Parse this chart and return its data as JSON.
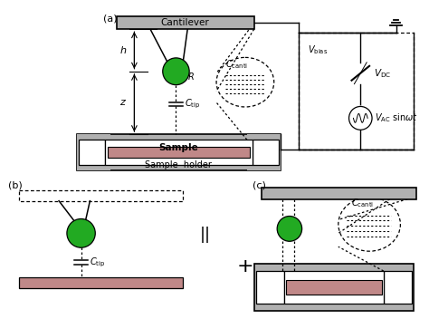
{
  "bg_color": "#ffffff",
  "gray_color": "#b0b0b0",
  "gray_dark": "#888888",
  "sample_color": "#c08888",
  "green_color": "#22aa22",
  "label_a": "(a)",
  "label_b": "(b)",
  "label_c": "(c)",
  "cantilever_text": "Cantilever",
  "sample_text": "Sample",
  "holder_text": "Sample  holder"
}
